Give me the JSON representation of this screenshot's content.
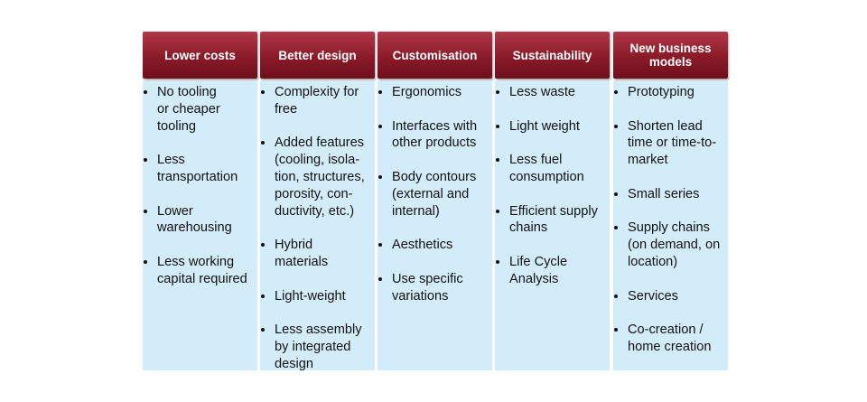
{
  "columns": [
    {
      "header": "Lower costs",
      "items": [
        "No tooling\nor cheaper\ntooling",
        "Less\ntransportation",
        "Lower\nwarehousing",
        "Less working\ncapital required"
      ]
    },
    {
      "header": "Better design",
      "items": [
        "Complexity for\nfree",
        "Added features\n(cooling, isola-\ntion, structures,\nporosity, con-\nductivity, etc.)",
        "Hybrid\nmaterials",
        "Light-weight",
        "Less assembly\nby integrated\ndesign"
      ]
    },
    {
      "header": "Customisation",
      "items": [
        "Ergonomics",
        "Interfaces with\nother products",
        "Body contours\n(external and\ninternal)",
        "Aesthetics",
        "Use specific\nvariations"
      ]
    },
    {
      "header": "Sustainability",
      "items": [
        "Less waste",
        "Light weight",
        "Less fuel\nconsumption",
        "Efficient supply\nchains",
        "Life Cycle\nAnalysis"
      ]
    },
    {
      "header": "New business\nmodels",
      "items": [
        "Prototyping",
        "Shorten lead\ntime or time-to-\nmarket",
        "Small series",
        "Supply chains\n(on demand, on\nlocation)",
        "Services",
        "Co-creation /\nhome creation"
      ]
    }
  ]
}
